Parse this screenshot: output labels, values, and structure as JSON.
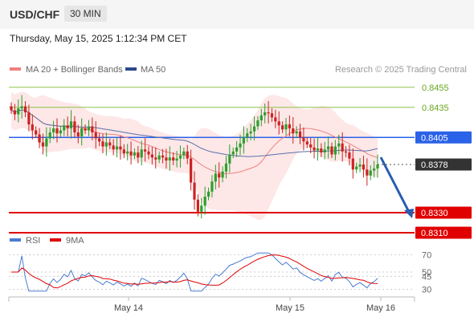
{
  "header": {
    "symbol": "USD/CHF",
    "interval": "30 MIN"
  },
  "datetime": "Thursday, May 15, 2025 1:12:34 PM CET",
  "legend": [
    {
      "label": "MA 20 + Bollinger Bands",
      "color": "#f08080"
    },
    {
      "label": "MA 50",
      "color": "#2b4a8a"
    }
  ],
  "credit": "Research © 2025 Trading Central",
  "levels": [
    {
      "value": "0.8455",
      "kind": "resistance-minor",
      "color": "#8bc34a"
    },
    {
      "value": "0.8435",
      "kind": "resistance-minor",
      "color": "#8bc34a"
    },
    {
      "value": "0.8405",
      "kind": "pivot",
      "color": "#2a62e8"
    },
    {
      "value": "0.8378",
      "kind": "last-price",
      "color": "#333333"
    },
    {
      "value": "0.8330",
      "kind": "target",
      "color": "#e00000"
    },
    {
      "value": "0.8310",
      "kind": "target",
      "color": "#e00000"
    }
  ],
  "rsi_legend": [
    {
      "label": "RSI",
      "color": "#4a7bd0"
    },
    {
      "label": "9MA",
      "color": "#e00000"
    }
  ],
  "rsi_ticks": [
    "70",
    "50",
    "45",
    "30"
  ],
  "x_labels": [
    "May 14",
    "May 15",
    "May 16"
  ],
  "chart_data": [
    {
      "type": "candlestick",
      "title": "USD/CHF 30 MIN",
      "ylim": [
        0.8318,
        0.8462
      ],
      "x": [
        "May 14",
        "May 15",
        "May 16"
      ],
      "closes": [
        0.8432,
        0.8428,
        0.8434,
        0.8436,
        0.843,
        0.8418,
        0.8412,
        0.8408,
        0.84,
        0.8396,
        0.8404,
        0.841,
        0.8414,
        0.8409,
        0.8412,
        0.8417,
        0.8414,
        0.8421,
        0.841,
        0.8406,
        0.8414,
        0.8412,
        0.8416,
        0.841,
        0.8404,
        0.8401,
        0.8396,
        0.84,
        0.8397,
        0.8393,
        0.8396,
        0.8393,
        0.8389,
        0.8391,
        0.8387,
        0.839,
        0.8385,
        0.8393,
        0.8391,
        0.8388,
        0.8385,
        0.8383,
        0.8387,
        0.8385,
        0.8382,
        0.8385,
        0.8382,
        0.8384,
        0.8387,
        0.8391,
        0.8384,
        0.836,
        0.8343,
        0.8331,
        0.8337,
        0.8346,
        0.8351,
        0.8361,
        0.8369,
        0.8365,
        0.8371,
        0.8379,
        0.8388,
        0.8391,
        0.8395,
        0.8399,
        0.8405,
        0.8409,
        0.8411,
        0.8416,
        0.8422,
        0.8427,
        0.843,
        0.8429,
        0.8425,
        0.8421,
        0.8417,
        0.8413,
        0.8418,
        0.8414,
        0.8409,
        0.8411,
        0.8405,
        0.8401,
        0.8398,
        0.8395,
        0.8392,
        0.8394,
        0.839,
        0.8393,
        0.8396,
        0.8388,
        0.8396,
        0.8399,
        0.8391,
        0.839,
        0.8384,
        0.8373,
        0.8376,
        0.8378,
        0.8373,
        0.8367,
        0.8372,
        0.8374,
        0.8378
      ],
      "series": [
        {
          "name": "MA 20 + Bollinger Bands",
          "color": "#f08080"
        },
        {
          "name": "MA 50",
          "color": "#2b4a8a"
        }
      ],
      "levels": [
        0.8455,
        0.8435,
        0.8405,
        0.8378,
        0.833,
        0.831
      ],
      "forecast": {
        "from": 0.8378,
        "to": 0.831,
        "direction": "down"
      }
    },
    {
      "type": "line",
      "title": "RSI",
      "ylim": [
        25,
        75
      ],
      "yticks": [
        70,
        50,
        45,
        30
      ],
      "series": [
        {
          "name": "RSI",
          "color": "#4a7bd0"
        },
        {
          "name": "9MA",
          "color": "#e00000"
        }
      ]
    }
  ]
}
